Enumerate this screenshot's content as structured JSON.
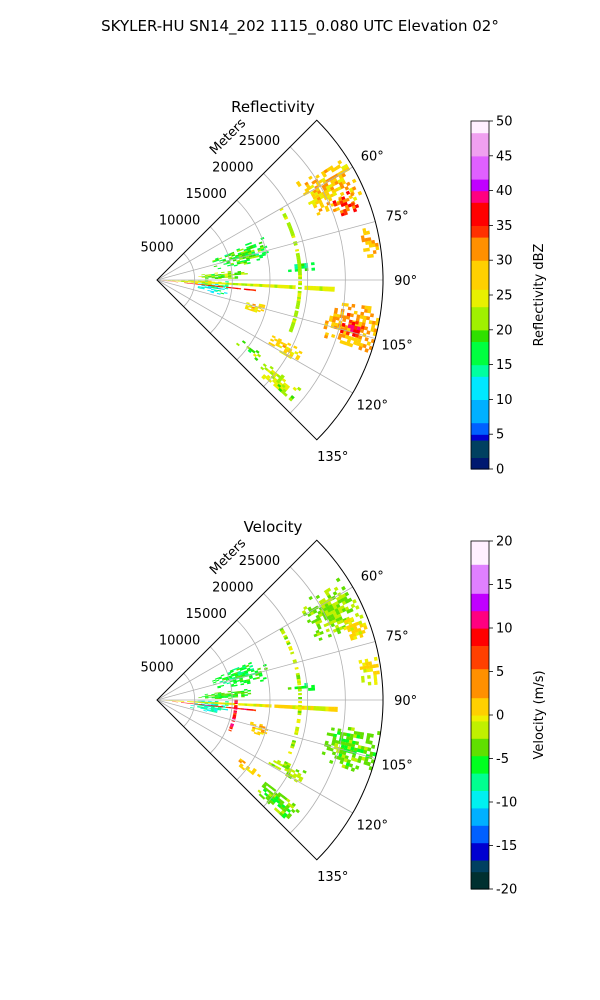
{
  "figure": {
    "title": "SKYLER-HU  SN14_202  1115_0.080 UTC Elevation 02°"
  },
  "chart_data": [
    {
      "type": "heatmap",
      "title": "Reflectivity",
      "projection": "polar-sector",
      "azimuth_range_deg": [
        45,
        135
      ],
      "azimuth_ticks": [
        "60°",
        "75°",
        "90°",
        "105°",
        "120°",
        "135°"
      ],
      "range_units_label": "Meters",
      "range_ticks": [
        "5000",
        "10000",
        "15000",
        "20000",
        "25000"
      ],
      "range_max_m": 30000,
      "grid": true,
      "colorbar": {
        "label": "Reflectivity dBZ",
        "min": 0,
        "max": 50,
        "ticks": [
          "0",
          "5",
          "10",
          "15",
          "20",
          "25",
          "30",
          "35",
          "40",
          "45",
          "50"
        ],
        "colormap": "NWSRef"
      },
      "echo_cells": [
        {
          "az": 62,
          "r": 26000,
          "daz": 14,
          "dr": 7000,
          "value": 28
        },
        {
          "az": 68,
          "r": 27000,
          "daz": 6,
          "dr": 3000,
          "value": 34
        },
        {
          "az": 80,
          "r": 28500,
          "daz": 8,
          "dr": 2500,
          "value": 30
        },
        {
          "az": 103,
          "r": 26500,
          "daz": 12,
          "dr": 7000,
          "value": 30
        },
        {
          "az": 104,
          "r": 26500,
          "daz": 4,
          "dr": 2500,
          "value": 37
        },
        {
          "az": 74,
          "r": 11500,
          "daz": 12,
          "dr": 7500,
          "value": 18
        },
        {
          "az": 97,
          "r": 7500,
          "daz": 12,
          "dr": 4000,
          "value": 13
        },
        {
          "az": 86,
          "r": 9000,
          "daz": 6,
          "dr": 7000,
          "value": 21
        },
        {
          "az": 93,
          "r": 5000,
          "daz": 6,
          "dr": 8000,
          "value": 24
        },
        {
          "az": 118,
          "r": 19500,
          "daz": 5,
          "dr": 5000,
          "value": 27
        },
        {
          "az": 130,
          "r": 21000,
          "daz": 6,
          "dr": 6000,
          "value": 22
        },
        {
          "az": 127,
          "r": 15500,
          "daz": 4,
          "dr": 4000,
          "value": 21
        },
        {
          "az": 85,
          "r": 19000,
          "daz": 3,
          "dr": 4000,
          "value": 17
        },
        {
          "az": 106,
          "r": 13500,
          "daz": 6,
          "dr": 2500,
          "value": 27
        }
      ],
      "bands": [
        {
          "kind": "radial",
          "az": 93,
          "r0": 0,
          "r1": 24000,
          "width_deg": 1.6,
          "value": 24
        },
        {
          "kind": "radial",
          "az": 96,
          "r0": 0,
          "r1": 13000,
          "width_deg": 0.9,
          "value": 35
        },
        {
          "kind": "arc",
          "r": 19000,
          "az0": 60,
          "az1": 112,
          "width_m": 500,
          "value": 22
        }
      ]
    },
    {
      "type": "heatmap",
      "title": "Velocity",
      "projection": "polar-sector",
      "azimuth_range_deg": [
        45,
        135
      ],
      "azimuth_ticks": [
        "60°",
        "75°",
        "90°",
        "105°",
        "120°",
        "135°"
      ],
      "range_units_label": "Meters",
      "range_ticks": [
        "5000",
        "10000",
        "15000",
        "20000",
        "25000"
      ],
      "range_max_m": 30000,
      "grid": true,
      "colorbar": {
        "label": "Velocity (m/s)",
        "min": -20,
        "max": 20,
        "ticks": [
          "-20",
          "-15",
          "-10",
          "-5",
          "0",
          "5",
          "10",
          "15",
          "20"
        ],
        "colormap": "NWSVel"
      },
      "echo_cells": [
        {
          "az": 63,
          "r": 26000,
          "daz": 14,
          "dr": 7000,
          "value": -3
        },
        {
          "az": 70,
          "r": 28000,
          "daz": 6,
          "dr": 3000,
          "value": 0
        },
        {
          "az": 82,
          "r": 28500,
          "daz": 8,
          "dr": 2500,
          "value": 0
        },
        {
          "az": 104,
          "r": 26500,
          "daz": 12,
          "dr": 7000,
          "value": -4
        },
        {
          "az": 74,
          "r": 11500,
          "daz": 12,
          "dr": 7500,
          "value": -6
        },
        {
          "az": 97,
          "r": 7000,
          "daz": 12,
          "dr": 5000,
          "value": -9
        },
        {
          "az": 86,
          "r": 9000,
          "daz": 6,
          "dr": 7000,
          "value": -5
        },
        {
          "az": 118,
          "r": 19500,
          "daz": 5,
          "dr": 5000,
          "value": -3
        },
        {
          "az": 130,
          "r": 21000,
          "daz": 6,
          "dr": 6000,
          "value": -4
        },
        {
          "az": 127,
          "r": 15500,
          "daz": 4,
          "dr": 4000,
          "value": 1
        },
        {
          "az": 85,
          "r": 19000,
          "daz": 3,
          "dr": 4000,
          "value": -6
        },
        {
          "az": 106,
          "r": 14000,
          "daz": 6,
          "dr": 2500,
          "value": 1
        }
      ],
      "bands": [
        {
          "kind": "radial",
          "az": 93,
          "r0": 0,
          "r1": 24000,
          "width_deg": 1.6,
          "value": 0
        },
        {
          "kind": "radial",
          "az": 96,
          "r0": 2000,
          "r1": 13000,
          "width_deg": 0.9,
          "value": 9
        },
        {
          "kind": "arc",
          "r": 19000,
          "az0": 60,
          "az1": 112,
          "width_m": 500,
          "value": -2
        },
        {
          "kind": "arc",
          "r": 10500,
          "az0": 88,
          "az1": 113,
          "width_m": 450,
          "value": 9
        }
      ]
    }
  ]
}
